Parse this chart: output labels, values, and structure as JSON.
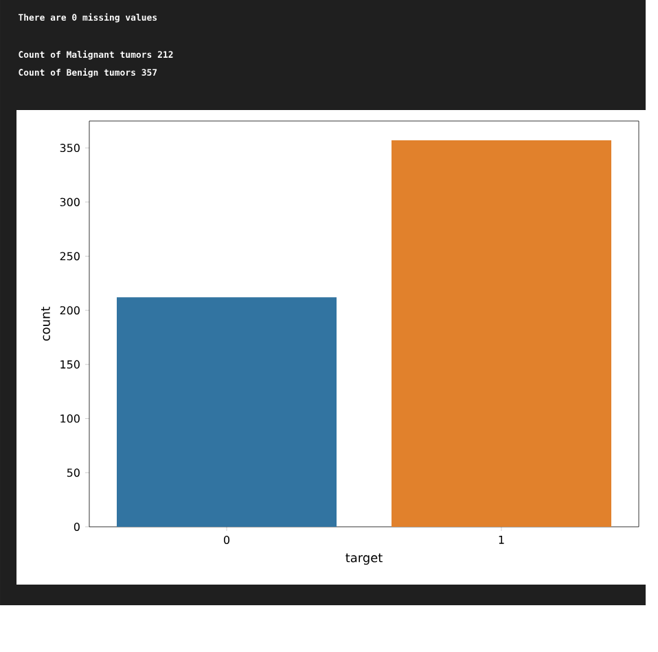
{
  "chart_data": {
    "type": "bar",
    "annotations": [
      "There are 0 missing values",
      "Count of Malignant tumors 212",
      "Count of Benign tumors 357"
    ],
    "categories": [
      "0",
      "1"
    ],
    "values": [
      212,
      357
    ],
    "colors": [
      "#3274a1",
      "#e1812c"
    ],
    "xlabel": "target",
    "ylabel": "count",
    "ylim": [
      0,
      374.85
    ],
    "yticks": [
      0,
      50,
      100,
      150,
      200,
      250,
      300,
      350
    ]
  }
}
